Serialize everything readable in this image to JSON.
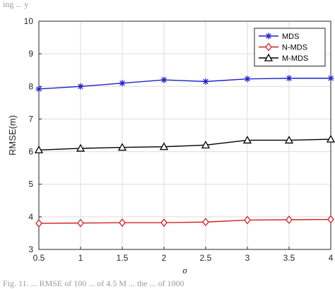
{
  "caption": {
    "top_fragment": "ing ... y",
    "bottom_fragment": "Fig. 11. ... RMSE of 100 ... of 4.5 M ... the ... of 1000"
  },
  "chart_data": {
    "type": "line",
    "xlabel": "σ",
    "ylabel": "RMSE(m)",
    "xlim": [
      0.5,
      4
    ],
    "ylim": [
      3,
      10
    ],
    "x": [
      0.5,
      1,
      1.5,
      2,
      2.5,
      3,
      3.5,
      4
    ],
    "xticks": [
      "0.5",
      "1",
      "1.5",
      "2",
      "2.5",
      "3",
      "3.5",
      "4"
    ],
    "yticks": [
      "3",
      "4",
      "5",
      "6",
      "7",
      "8",
      "9",
      "10"
    ],
    "grid": true,
    "legend_position": "top-right",
    "series": [
      {
        "name": "MDS",
        "color": "#1f1fcc",
        "marker": "star",
        "values": [
          7.92,
          8.0,
          8.1,
          8.2,
          8.15,
          8.23,
          8.25,
          8.25
        ]
      },
      {
        "name": "N-MDS",
        "color": "#d42020",
        "marker": "diamond",
        "values": [
          3.8,
          3.81,
          3.82,
          3.82,
          3.84,
          3.9,
          3.91,
          3.92
        ]
      },
      {
        "name": "M-MDS",
        "color": "#000000",
        "marker": "triangle",
        "values": [
          6.05,
          6.1,
          6.13,
          6.15,
          6.2,
          6.35,
          6.35,
          6.38
        ]
      }
    ]
  }
}
